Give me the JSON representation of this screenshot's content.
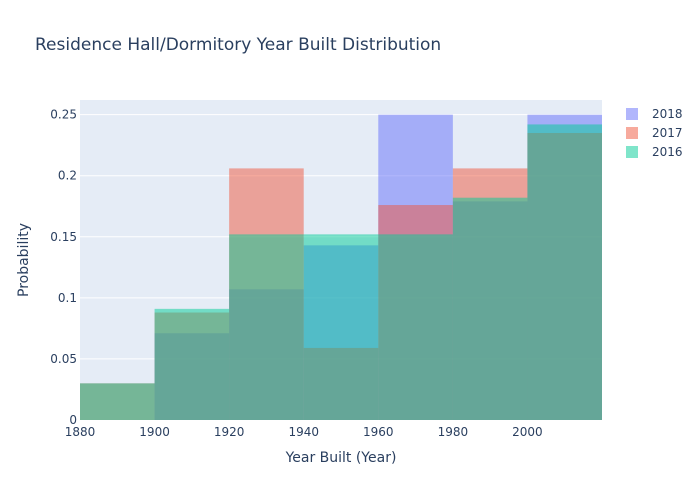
{
  "chart_data": {
    "type": "histogram",
    "title": "Residence Hall/Dormitory Year Built Distribution",
    "xlabel": "Year Built (Year)",
    "ylabel": "Probability",
    "xlim": [
      1880,
      2020
    ],
    "ylim": [
      0,
      0.262
    ],
    "bin_edges": [
      1880,
      1900,
      1920,
      1940,
      1960,
      1980,
      2000,
      2020
    ],
    "x_ticks": [
      1880,
      1900,
      1920,
      1940,
      1960,
      1980,
      2000
    ],
    "x_tick_labels": [
      "1880",
      "1900",
      "1920",
      "1940",
      "1960",
      "1980",
      "2000"
    ],
    "y_ticks": [
      0,
      0.05,
      0.1,
      0.15,
      0.2,
      0.25
    ],
    "y_tick_labels": [
      "0",
      "0.05",
      "0.1",
      "0.15",
      "0.2",
      "0.25"
    ],
    "grid": true,
    "legend_position": "top-right",
    "series": [
      {
        "name": "2018",
        "color": "#636efa",
        "values": [
          0,
          0.071,
          0.107,
          0.143,
          0.25,
          0.179,
          0.25
        ]
      },
      {
        "name": "2017",
        "color": "#ef553b",
        "values": [
          0.03,
          0.088,
          0.206,
          0.059,
          0.176,
          0.206,
          0.235
        ]
      },
      {
        "name": "2016",
        "color": "#00cc96",
        "values": [
          0.03,
          0.091,
          0.152,
          0.152,
          0.152,
          0.182,
          0.242
        ]
      }
    ]
  }
}
